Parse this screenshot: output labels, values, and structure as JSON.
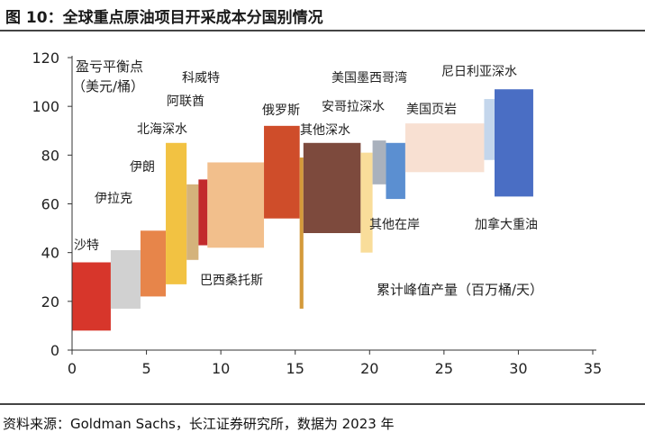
{
  "figure": {
    "title": "图 10：全球重点原油项目开采成本分国别情况",
    "source": "资料来源：Goldman Sachs，长江证券研究所，数据为 2023 年"
  },
  "chart_data": {
    "type": "bar",
    "subtype": "floating-variable-width",
    "ylabel": "盈亏平衡点（美元/桶）",
    "xlabel": "累计峰值产量（百万桶/天）",
    "xlim": [
      0,
      35
    ],
    "ylim": [
      0,
      120
    ],
    "xticks": [
      0,
      5,
      10,
      15,
      20,
      25,
      30,
      35
    ],
    "yticks": [
      0,
      20,
      40,
      60,
      80,
      100,
      120
    ],
    "grid": false,
    "segments": [
      {
        "name": "沙特",
        "x0": 0,
        "x1": 2.6,
        "low": 8,
        "high": 36,
        "color": "#d7362b"
      },
      {
        "name": "伊拉克",
        "x0": 2.6,
        "x1": 4.6,
        "low": 17,
        "high": 41,
        "color": "#d1d1d1"
      },
      {
        "name": "伊朗",
        "x0": 4.6,
        "x1": 6.3,
        "low": 22,
        "high": 49,
        "color": "#e7854a"
      },
      {
        "name": "北海深水",
        "x0": 6.3,
        "x1": 7.7,
        "low": 27,
        "high": 85,
        "color": "#f2c242"
      },
      {
        "name": "阿联酋",
        "x0": 7.7,
        "x1": 8.5,
        "low": 37,
        "high": 68,
        "color": "#d4b37b"
      },
      {
        "name": "科威特",
        "x0": 8.5,
        "x1": 9.1,
        "low": 43,
        "high": 70,
        "color": "#c22a2c"
      },
      {
        "name": "巴西桑托斯",
        "x0": 9.1,
        "x1": 12.9,
        "low": 42,
        "high": 77,
        "color": "#f2bf8c"
      },
      {
        "name": "俄罗斯",
        "x0": 12.9,
        "x1": 15.3,
        "low": 54,
        "high": 92,
        "color": "#cf4d2a"
      },
      {
        "name": "",
        "x0": 15.3,
        "x1": 15.55,
        "low": 17,
        "high": 79,
        "color": "#d49a3a"
      },
      {
        "name": "其他深水",
        "x0": 15.55,
        "x1": 19.4,
        "low": 48,
        "high": 85,
        "color": "#7d4a3d"
      },
      {
        "name": "其他在岸",
        "x0": 19.4,
        "x1": 20.2,
        "low": 40,
        "high": 81,
        "color": "#f9dd9a"
      },
      {
        "name": "安哥拉深水",
        "x0": 20.2,
        "x1": 21.1,
        "low": 68,
        "high": 86,
        "color": "#a9b1bd"
      },
      {
        "name": "美国墨西哥湾",
        "x0": 21.1,
        "x1": 22.4,
        "low": 62,
        "high": 85,
        "color": "#5b8fd1"
      },
      {
        "name": "美国页岩",
        "x0": 22.4,
        "x1": 27.7,
        "low": 73,
        "high": 93,
        "color": "#f8e0d2"
      },
      {
        "name": "尼日利亚深水",
        "x0": 27.7,
        "x1": 28.4,
        "low": 78,
        "high": 103,
        "color": "#c4d6ec"
      },
      {
        "name": "加拿大重油",
        "x0": 28.4,
        "x1": 31.0,
        "low": 63,
        "high": 107,
        "color": "#4a6ec4"
      }
    ],
    "annotations": [
      {
        "id": "saudi",
        "text": "沙特"
      },
      {
        "id": "iraq",
        "text": "伊拉克"
      },
      {
        "id": "iran",
        "text": "伊朗"
      },
      {
        "id": "north-sea",
        "text": "北海深水"
      },
      {
        "id": "uae",
        "text": "阿联酋"
      },
      {
        "id": "kuwait",
        "text": "科威特"
      },
      {
        "id": "brazil",
        "text": "巴西桑托斯"
      },
      {
        "id": "russia",
        "text": "俄罗斯"
      },
      {
        "id": "other-deepwater",
        "text": "其他深水"
      },
      {
        "id": "other-onshore",
        "text": "其他在岸"
      },
      {
        "id": "angola",
        "text": "安哥拉深水"
      },
      {
        "id": "gulf-of-mexico",
        "text": "美国墨西哥湾"
      },
      {
        "id": "shale",
        "text": "美国页岩"
      },
      {
        "id": "nigeria",
        "text": "尼日利亚深水"
      },
      {
        "id": "canada",
        "text": "加拿大重油"
      }
    ],
    "ylabel_lines": [
      "盈亏平衡点",
      "（美元/桶）"
    ]
  }
}
